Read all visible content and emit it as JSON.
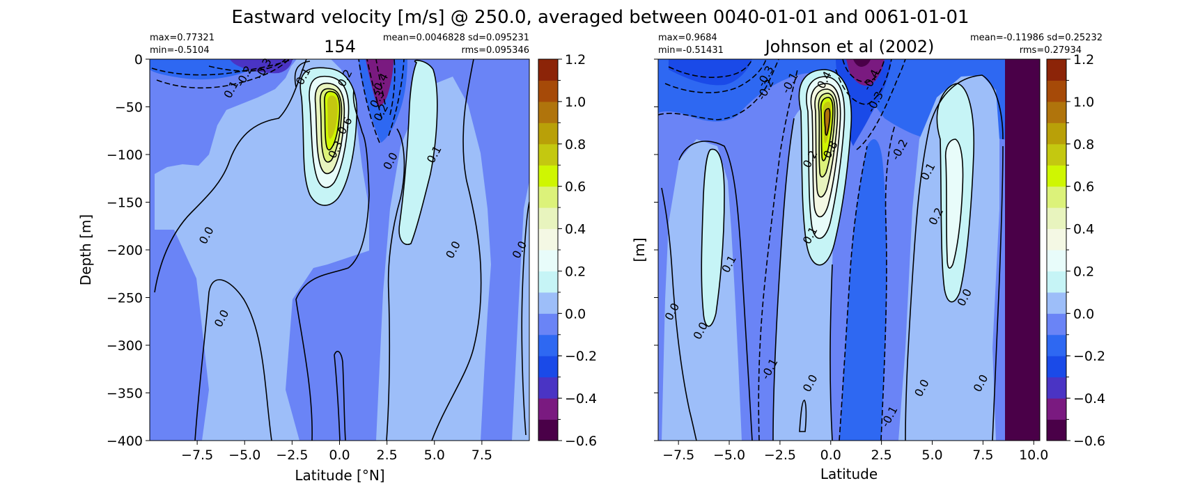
{
  "chart_data": {
    "type": "heatmap",
    "suptitle": "Eastward velocity [m/s] @ 250.0, averaged between 0040-01-01 and 0061-01-01",
    "colorbar_levels": [
      -0.6,
      -0.5,
      -0.4,
      -0.3,
      -0.2,
      -0.1,
      0.0,
      0.1,
      0.2,
      0.3,
      0.4,
      0.5,
      0.6,
      0.7,
      0.8,
      0.9,
      1.0,
      1.1,
      1.2
    ],
    "colorbar_colors": [
      "#4a0048",
      "#7a1a80",
      "#4a34c4",
      "#1a4ae8",
      "#2e68f2",
      "#6a84f6",
      "#9dbef9",
      "#c6f4f6",
      "#e8fcfa",
      "#f4f8e4",
      "#e8f4be",
      "#dcf27a",
      "#cff602",
      "#c4c810",
      "#b9a008",
      "#b0740c",
      "#a64a08",
      "#8c2408",
      "#6c0002"
    ],
    "panels": [
      {
        "id": "model",
        "title": "154",
        "stat_max": "max=0.77321",
        "stat_min": "min=-0.5104",
        "stat_mean_sd": "mean=0.0046828 sd=0.095231",
        "stat_rms": "rms=0.095346",
        "xlabel": "Latitude [°N]",
        "ylabel": "Depth [m]",
        "xlim": [
          -10,
          10
        ],
        "ylim": [
          -400,
          0
        ],
        "xticks": [
          "−7.5",
          "−5.0",
          "−2.5",
          "0.0",
          "2.5",
          "5.0",
          "7.5"
        ],
        "xtick_values": [
          -7.5,
          -5.0,
          -2.5,
          0.0,
          2.5,
          5.0,
          7.5
        ],
        "yticks": [
          "0",
          "−50",
          "−100",
          "−150",
          "−200",
          "−250",
          "−300",
          "−350",
          "−400"
        ],
        "ytick_values": [
          0,
          -50,
          -100,
          -150,
          -200,
          -250,
          -300,
          -350,
          -400
        ],
        "colorbar_ticks": [
          "1.2",
          "1.0",
          "0.8",
          "0.6",
          "0.4",
          "0.2",
          "0.0",
          "−0.2",
          "−0.4",
          "−0.6"
        ],
        "colorbar_tick_values": [
          1.2,
          1.0,
          0.8,
          0.6,
          0.4,
          0.2,
          0.0,
          -0.2,
          -0.4,
          -0.6
        ],
        "contour_labels": [
          {
            "text": "-0.3",
            "x": -4.0,
            "y": -10
          },
          {
            "text": "-0.2",
            "x": -5.0,
            "y": -18
          },
          {
            "text": "0.1",
            "x": -5.7,
            "y": -32
          },
          {
            "text": "0.1",
            "x": -1.9,
            "y": -18
          },
          {
            "text": "0.2",
            "x": 0.3,
            "y": -20
          },
          {
            "text": "0.4",
            "x": 2.2,
            "y": -24
          },
          {
            "text": "0.3",
            "x": 2.0,
            "y": -42
          },
          {
            "text": "0.2",
            "x": 2.2,
            "y": -56
          },
          {
            "text": "0.6",
            "x": 0.3,
            "y": -70
          },
          {
            "text": "0.3",
            "x": -0.2,
            "y": -95
          },
          {
            "text": "0.0",
            "x": 2.7,
            "y": -107
          },
          {
            "text": "0.1",
            "x": 5.0,
            "y": -100
          },
          {
            "text": "0.0",
            "x": -7.0,
            "y": -185
          },
          {
            "text": "0.0",
            "x": -6.2,
            "y": -272
          },
          {
            "text": "0.0",
            "x": 6.0,
            "y": -200
          },
          {
            "text": "0.0",
            "x": 9.5,
            "y": -200
          }
        ]
      },
      {
        "id": "obs",
        "title": "Johnson et al (2002)",
        "stat_max": "max=0.9684",
        "stat_min": "min=-0.51431",
        "stat_mean_sd": "mean=-0.11986 sd=0.25232",
        "stat_rms": "rms=0.27934",
        "xlabel": "Latitude",
        "ylabel": "[m]",
        "xlim": [
          -8.5,
          10.3
        ],
        "ylim": [
          -400,
          0
        ],
        "xticks": [
          "−7.5",
          "−5.0",
          "−2.5",
          "0.0",
          "2.5",
          "5.0",
          "7.5",
          "10.0"
        ],
        "xtick_values": [
          -7.5,
          -5.0,
          -2.5,
          0.0,
          2.5,
          5.0,
          7.5,
          10.0
        ],
        "yticks": [
          "",
          "",
          "",
          "",
          "",
          "",
          "",
          "",
          ""
        ],
        "ytick_values": [
          0,
          -50,
          -100,
          -150,
          -200,
          -250,
          -300,
          -350,
          -400
        ],
        "colorbar_ticks": [
          "1.2",
          "1.0",
          "0.8",
          "0.6",
          "0.4",
          "0.2",
          "0.0",
          "−0.2",
          "−0.4",
          "−0.6"
        ],
        "colorbar_tick_values": [
          1.2,
          1.0,
          0.8,
          0.6,
          0.4,
          0.2,
          0.0,
          -0.2,
          -0.4,
          -0.6
        ],
        "contour_labels": [
          {
            "text": "-0.3",
            "x": -3.2,
            "y": -18
          },
          {
            "text": "-0.2",
            "x": -3.2,
            "y": -32
          },
          {
            "text": "-0.1",
            "x": -2.0,
            "y": -25
          },
          {
            "text": "0.4",
            "x": -0.3,
            "y": -22
          },
          {
            "text": "-0.4",
            "x": 2.0,
            "y": -22
          },
          {
            "text": "-0.3",
            "x": 2.2,
            "y": -45
          },
          {
            "text": "-0.2",
            "x": 3.4,
            "y": -95
          },
          {
            "text": "0.8",
            "x": 0.0,
            "y": -95
          },
          {
            "text": "0.2",
            "x": -1.0,
            "y": -105
          },
          {
            "text": "0.1",
            "x": 4.8,
            "y": -118
          },
          {
            "text": "0.2",
            "x": 5.2,
            "y": -165
          },
          {
            "text": "0.1",
            "x": -1.0,
            "y": -185
          },
          {
            "text": "0.1",
            "x": -5.0,
            "y": -215
          },
          {
            "text": "0.0",
            "x": -7.8,
            "y": -265
          },
          {
            "text": "0.0",
            "x": -6.4,
            "y": -285
          },
          {
            "text": "0.0",
            "x": 6.6,
            "y": -250
          },
          {
            "text": "-0.1",
            "x": -3.0,
            "y": -325
          },
          {
            "text": "0.0",
            "x": -1.0,
            "y": -340
          },
          {
            "text": "0.0",
            "x": 4.5,
            "y": -345
          },
          {
            "text": "0.0",
            "x": 7.4,
            "y": -340
          },
          {
            "text": "-0.1",
            "x": 2.9,
            "y": -375
          }
        ]
      }
    ]
  }
}
